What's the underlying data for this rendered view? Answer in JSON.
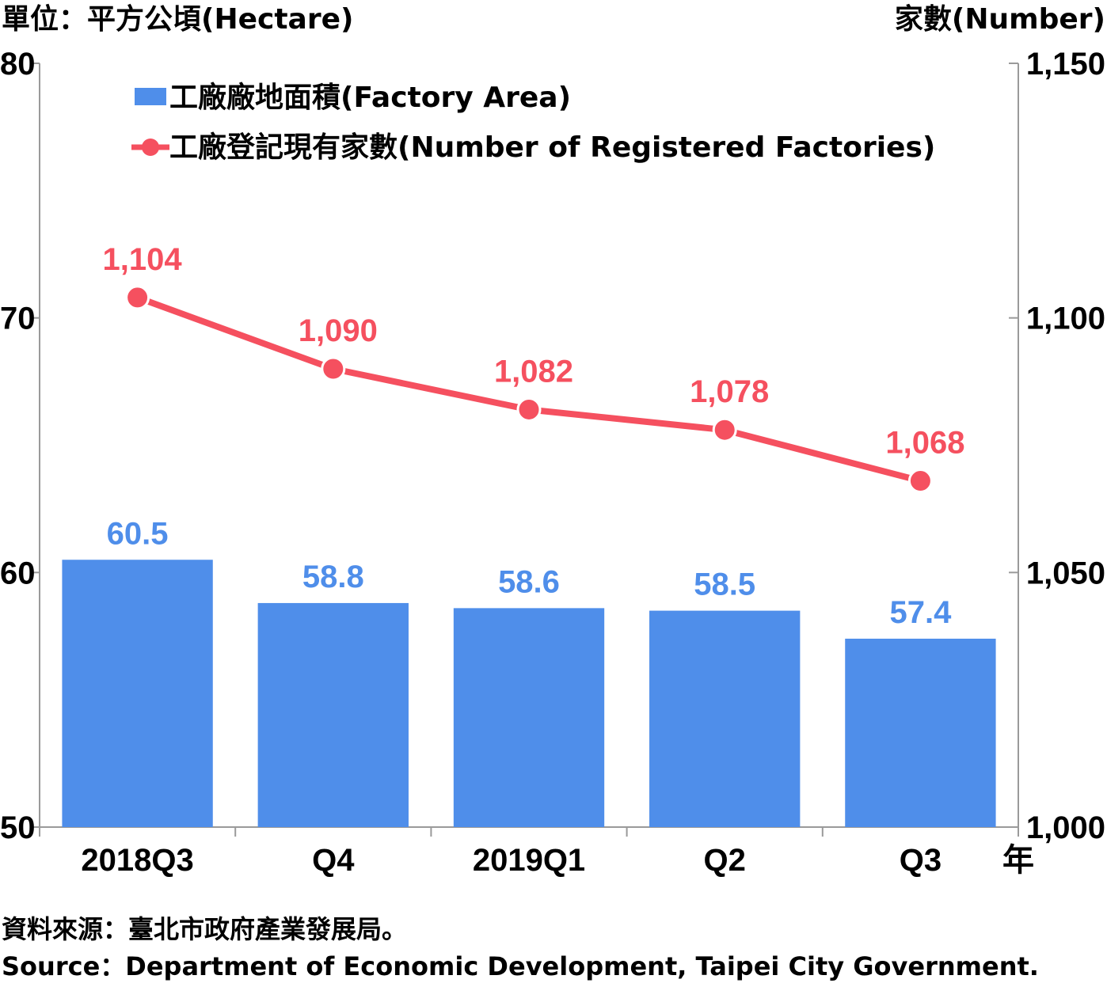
{
  "chart_data": {
    "type": "bar+line",
    "categories": [
      "2018Q3",
      "Q4",
      "2019Q1",
      "Q2",
      "Q3"
    ],
    "x_unit_label": "年",
    "left_axis": {
      "title": "單位：平方公頃(Hectare)",
      "ylim": [
        50,
        80
      ],
      "ticks": [
        "50",
        "60",
        "70",
        "80"
      ]
    },
    "right_axis": {
      "title": "家數(Number)",
      "ylim": [
        1000,
        1150
      ],
      "ticks": [
        "1,000",
        "1,050",
        "1,100",
        "1,150"
      ]
    },
    "series": [
      {
        "name": "工廠廠地面積(Factory Area)",
        "type": "bar",
        "axis": "left",
        "values": [
          60.5,
          58.8,
          58.6,
          58.5,
          57.4
        ],
        "labels": [
          "60.5",
          "58.8",
          "58.6",
          "58.5",
          "57.4"
        ],
        "color": "#4F8EEA"
      },
      {
        "name": "工廠登記現有家數(Number of Registered Factories)",
        "type": "line",
        "axis": "right",
        "values": [
          1104,
          1090,
          1082,
          1078,
          1068
        ],
        "labels": [
          "1,104",
          "1,090",
          "1,082",
          "1,078",
          "1,068"
        ],
        "color": "#F5505F"
      }
    ],
    "legend": "top-left",
    "grid": false
  },
  "source": {
    "zh": "資料來源：臺北市政府產業發展局。",
    "en": "Source：Department of Economic Development, Taipei City Government."
  }
}
